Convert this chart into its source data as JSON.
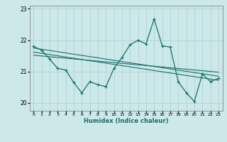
{
  "xlabel": "Humidex (Indice chaleur)",
  "background_color": "#cce8e8",
  "line_color": "#1a6e6a",
  "grid_color": "#add4d4",
  "xlim": [
    -0.5,
    23.5
  ],
  "ylim": [
    19.75,
    23.1
  ],
  "yticks": [
    20,
    21,
    22,
    23
  ],
  "xticks": [
    0,
    1,
    2,
    3,
    4,
    5,
    6,
    7,
    8,
    9,
    10,
    11,
    12,
    13,
    14,
    15,
    16,
    17,
    18,
    19,
    20,
    21,
    22,
    23
  ],
  "series1_x": [
    0,
    1,
    2,
    3,
    4,
    5,
    6,
    7,
    8,
    9,
    10,
    11,
    12,
    13,
    14,
    15,
    16,
    17,
    18,
    19,
    20,
    21,
    22,
    23
  ],
  "series1_y": [
    21.8,
    21.68,
    21.4,
    21.1,
    21.05,
    20.65,
    20.32,
    20.68,
    20.58,
    20.52,
    21.1,
    21.45,
    21.85,
    22.0,
    21.88,
    22.68,
    21.82,
    21.78,
    20.68,
    20.32,
    20.05,
    20.92,
    20.68,
    20.78
  ],
  "trend1_x": [
    0,
    23
  ],
  "trend1_y": [
    21.75,
    20.85
  ],
  "trend2_x": [
    0,
    23
  ],
  "trend2_y": [
    21.62,
    20.72
  ],
  "trend3_x": [
    0,
    23
  ],
  "trend3_y": [
    21.52,
    20.98
  ]
}
